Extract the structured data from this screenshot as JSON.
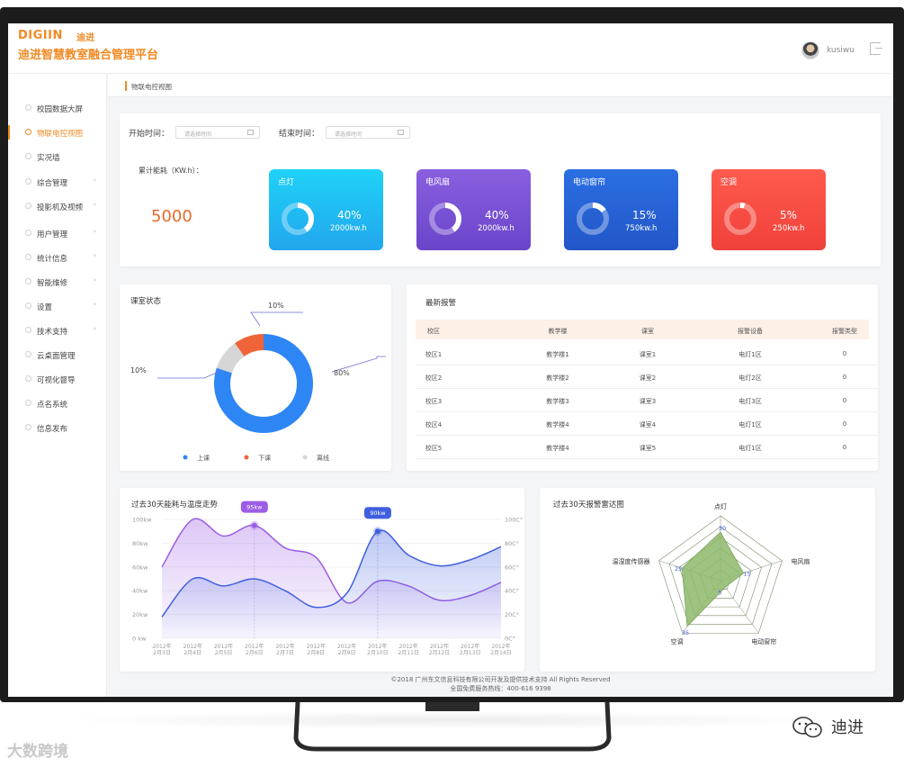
{
  "header": {
    "logo_en": "DIGIIN",
    "logo_reg": "®",
    "logo_cn": "迪进",
    "title": "迪进智慧教室融合管理平台",
    "username": "kusiwu"
  },
  "sidebar": {
    "items": [
      {
        "label": "校园数据大屏",
        "active": false,
        "submenu": false
      },
      {
        "label": "物联电控视图",
        "active": true,
        "submenu": false
      },
      {
        "label": "实况墙",
        "active": false,
        "submenu": false
      },
      {
        "label": "综合管理",
        "active": false,
        "submenu": true
      },
      {
        "label": "投影机及视频",
        "active": false,
        "submenu": true
      },
      {
        "label": "用户管理",
        "active": false,
        "submenu": true
      },
      {
        "label": "统计信息",
        "active": false,
        "submenu": true
      },
      {
        "label": "智能维修",
        "active": false,
        "submenu": true
      },
      {
        "label": "设置",
        "active": false,
        "submenu": true
      },
      {
        "label": "技术支持",
        "active": false,
        "submenu": true
      },
      {
        "label": "云桌面管理",
        "active": false,
        "submenu": false
      },
      {
        "label": "可视化督导",
        "active": false,
        "submenu": false
      },
      {
        "label": "点名系统",
        "active": false,
        "submenu": false
      },
      {
        "label": "信息发布",
        "active": false,
        "submenu": false
      }
    ]
  },
  "breadcrumb": "物联电控视图",
  "filters": {
    "start_label": "开始时间：",
    "end_label": "结束时间：",
    "placeholder": "请选择时间"
  },
  "energy": {
    "label": "累计能耗（KW.h）：",
    "total": "5000",
    "cards": [
      {
        "title": "点灯",
        "percent": "40%",
        "kwh": "2000kw.h",
        "fraction": 0.4,
        "color_top": "#1fd2f7",
        "color_bottom": "#22a6ee"
      },
      {
        "title": "电风扇",
        "percent": "40%",
        "kwh": "2000kw.h",
        "fraction": 0.4,
        "color_top": "#8a5fe0",
        "color_bottom": "#6a45c9"
      },
      {
        "title": "电动窗帘",
        "percent": "15%",
        "kwh": "750kw.h",
        "fraction": 0.15,
        "color_top": "#2b6fe3",
        "color_bottom": "#2256c8"
      },
      {
        "title": "空调",
        "percent": "5%",
        "kwh": "250kw.h",
        "fraction": 0.05,
        "color_top": "#ff5a4e",
        "color_bottom": "#f0413a"
      }
    ]
  },
  "classroom_status": {
    "title": "课室状态",
    "slices": [
      {
        "label": "上课",
        "percent": "80%",
        "value": 80,
        "color": "#2e86f5"
      },
      {
        "label": "下课",
        "percent": "10%",
        "value": 10,
        "color": "#f0643a"
      },
      {
        "label": "离线",
        "percent": "10%",
        "value": 10,
        "color": "#d6d6d6"
      }
    ]
  },
  "alarms": {
    "title": "最新报警",
    "columns": [
      "校区",
      "教学楼",
      "课室",
      "报警设备",
      "报警类型"
    ],
    "rows": [
      [
        "校区1",
        "教学楼1",
        "课室1",
        "电灯1区",
        "0"
      ],
      [
        "校区2",
        "教学楼2",
        "课室2",
        "电灯2区",
        "0"
      ],
      [
        "校区3",
        "教学楼3",
        "课室3",
        "电灯3区",
        "0"
      ],
      [
        "校区4",
        "教学楼4",
        "课室4",
        "电灯1区",
        "0"
      ],
      [
        "校区5",
        "教学楼4",
        "课室5",
        "电灯1区",
        "0"
      ]
    ]
  },
  "chart_data": [
    {
      "type": "area",
      "title": "过去30天能耗与温度走势",
      "categories": [
        "2012年\n2月3日",
        "2012年\n2月4日",
        "2012年\n2月5日",
        "2012年\n2月6日",
        "2012年\n2月7日",
        "2012年\n2月8日",
        "2012年\n2月9日",
        "2012年\n2月10日",
        "2012年\n2月11日",
        "2012年\n2月12日",
        "2012年\n2月13日",
        "2012年\n2月14日"
      ],
      "y_ticks_left": [
        "100kw",
        "80kw",
        "60kw",
        "40kw",
        "20kw",
        "0 kw"
      ],
      "y_ticks_right": [
        "100C°",
        "80C°",
        "60C°",
        "40C°",
        "20C°",
        "0C°"
      ],
      "ylim": [
        0,
        100
      ],
      "series": [
        {
          "values": [
            60,
            100,
            86,
            95,
            76,
            68,
            30,
            48,
            44,
            32,
            36,
            47
          ],
          "color": "#9b5de5"
        },
        {
          "values": [
            18,
            50,
            44,
            50,
            40,
            26,
            38,
            90,
            70,
            61,
            66,
            77
          ],
          "color": "#3f5fe0"
        }
      ],
      "annotations": [
        {
          "label": "95kw",
          "index": 3,
          "value": 95,
          "color": "#9b5de5"
        },
        {
          "label": "90kw",
          "index": 7,
          "value": 90,
          "color": "#3f5fe0"
        }
      ]
    },
    {
      "type": "radar",
      "title": "过去30天报警雷达图",
      "axes": [
        "点灯",
        "电风扇",
        "电动窗帘",
        "空调",
        "温湿度传感器"
      ],
      "tick_labels": [
        "5",
        "15",
        "25",
        "30",
        "35"
      ],
      "max": 40,
      "values": [
        30,
        15,
        5,
        35,
        25
      ],
      "fill": "#8db86a"
    }
  ],
  "footer": {
    "line1": "©2018 广州东文信息科技有限公司开发及提供技术支持 All Rights Reserved",
    "line2": "全国免费服务热线：400-616 9398"
  },
  "watermarks": {
    "left": "大数跨境",
    "right": "迪进"
  }
}
